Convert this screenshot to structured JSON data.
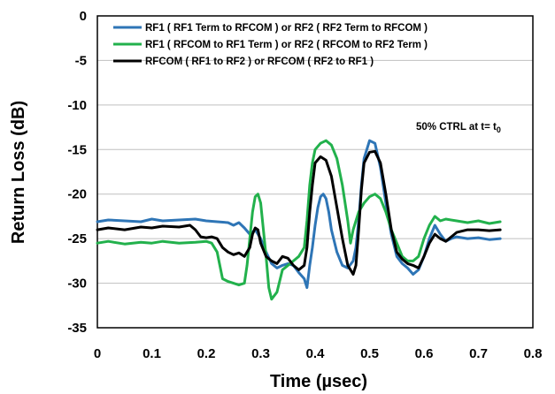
{
  "chart_data": {
    "type": "line",
    "xlabel": "Time (µsec)",
    "ylabel": "Return Loss (dB)",
    "xlim": [
      0,
      0.8
    ],
    "ylim": [
      -35,
      0
    ],
    "x_ticks": [
      "0",
      "0.1",
      "0.2",
      "0.3",
      "0.4",
      "0.5",
      "0.6",
      "0.7",
      "0.8"
    ],
    "y_ticks": [
      "0",
      "-5",
      "-10",
      "-15",
      "-20",
      "-25",
      "-30",
      "-35"
    ],
    "grid": "horizontal",
    "legend_position": "top",
    "annotation": {
      "text": "50% CTRL at t= t",
      "subscript": "0",
      "x": 0.63,
      "y": -11
    },
    "series": [
      {
        "name": "RF1 ( RF1 Term to RFCOM ) or RF2 ( RF2 Term to RFCOM )",
        "color": "#2e75b6",
        "points": [
          [
            0,
            -23.1
          ],
          [
            0.02,
            -22.9
          ],
          [
            0.05,
            -23.0
          ],
          [
            0.08,
            -23.1
          ],
          [
            0.1,
            -22.8
          ],
          [
            0.12,
            -23.0
          ],
          [
            0.15,
            -22.9
          ],
          [
            0.18,
            -22.8
          ],
          [
            0.2,
            -23.0
          ],
          [
            0.22,
            -23.1
          ],
          [
            0.24,
            -23.2
          ],
          [
            0.25,
            -23.5
          ],
          [
            0.26,
            -23.2
          ],
          [
            0.27,
            -23.8
          ],
          [
            0.28,
            -24.5
          ],
          [
            0.29,
            -24.0
          ],
          [
            0.3,
            -25.0
          ],
          [
            0.31,
            -26.5
          ],
          [
            0.32,
            -27.8
          ],
          [
            0.33,
            -28.3
          ],
          [
            0.34,
            -28.0
          ],
          [
            0.35,
            -27.8
          ],
          [
            0.36,
            -28.0
          ],
          [
            0.37,
            -28.8
          ],
          [
            0.38,
            -29.5
          ],
          [
            0.385,
            -30.5
          ],
          [
            0.39,
            -28.0
          ],
          [
            0.395,
            -26.0
          ],
          [
            0.4,
            -23.5
          ],
          [
            0.405,
            -21.5
          ],
          [
            0.41,
            -20.3
          ],
          [
            0.415,
            -20.0
          ],
          [
            0.42,
            -20.5
          ],
          [
            0.425,
            -22.0
          ],
          [
            0.43,
            -24.0
          ],
          [
            0.44,
            -26.5
          ],
          [
            0.45,
            -28.0
          ],
          [
            0.46,
            -28.3
          ],
          [
            0.47,
            -27.5
          ],
          [
            0.475,
            -26.0
          ],
          [
            0.48,
            -23.0
          ],
          [
            0.485,
            -19.0
          ],
          [
            0.49,
            -16.0
          ],
          [
            0.5,
            -14.0
          ],
          [
            0.51,
            -14.3
          ],
          [
            0.52,
            -17.0
          ],
          [
            0.53,
            -21.0
          ],
          [
            0.54,
            -24.5
          ],
          [
            0.55,
            -27.0
          ],
          [
            0.56,
            -27.8
          ],
          [
            0.57,
            -28.3
          ],
          [
            0.58,
            -29.0
          ],
          [
            0.59,
            -28.5
          ],
          [
            0.6,
            -27.0
          ],
          [
            0.61,
            -25.0
          ],
          [
            0.62,
            -23.5
          ],
          [
            0.63,
            -24.5
          ],
          [
            0.64,
            -25.3
          ],
          [
            0.65,
            -25.0
          ],
          [
            0.66,
            -24.8
          ],
          [
            0.68,
            -25.0
          ],
          [
            0.7,
            -24.9
          ],
          [
            0.72,
            -25.1
          ],
          [
            0.74,
            -25.0
          ]
        ]
      },
      {
        "name": "RF1 ( RFCOM to RF1 Term ) or RF2 ( RFCOM to RF2 Term )",
        "color": "#22b14c",
        "points": [
          [
            0,
            -25.5
          ],
          [
            0.02,
            -25.3
          ],
          [
            0.05,
            -25.6
          ],
          [
            0.08,
            -25.4
          ],
          [
            0.1,
            -25.5
          ],
          [
            0.12,
            -25.3
          ],
          [
            0.15,
            -25.5
          ],
          [
            0.18,
            -25.4
          ],
          [
            0.2,
            -25.3
          ],
          [
            0.21,
            -25.5
          ],
          [
            0.22,
            -26.5
          ],
          [
            0.23,
            -29.5
          ],
          [
            0.24,
            -29.8
          ],
          [
            0.25,
            -30.0
          ],
          [
            0.26,
            -30.2
          ],
          [
            0.27,
            -30.0
          ],
          [
            0.275,
            -28.0
          ],
          [
            0.28,
            -25.0
          ],
          [
            0.285,
            -22.0
          ],
          [
            0.29,
            -20.3
          ],
          [
            0.295,
            -20.0
          ],
          [
            0.3,
            -21.0
          ],
          [
            0.31,
            -27.0
          ],
          [
            0.315,
            -30.5
          ],
          [
            0.32,
            -31.8
          ],
          [
            0.33,
            -31.0
          ],
          [
            0.34,
            -28.5
          ],
          [
            0.35,
            -28.0
          ],
          [
            0.36,
            -27.5
          ],
          [
            0.37,
            -27.0
          ],
          [
            0.38,
            -26.0
          ],
          [
            0.385,
            -23.0
          ],
          [
            0.39,
            -19.0
          ],
          [
            0.395,
            -16.5
          ],
          [
            0.4,
            -15.0
          ],
          [
            0.41,
            -14.3
          ],
          [
            0.42,
            -14.0
          ],
          [
            0.43,
            -14.5
          ],
          [
            0.44,
            -16.0
          ],
          [
            0.45,
            -19.0
          ],
          [
            0.46,
            -23.0
          ],
          [
            0.465,
            -25.5
          ],
          [
            0.47,
            -24.0
          ],
          [
            0.48,
            -22.0
          ],
          [
            0.49,
            -21.0
          ],
          [
            0.5,
            -20.3
          ],
          [
            0.51,
            -20.0
          ],
          [
            0.52,
            -20.5
          ],
          [
            0.53,
            -22.0
          ],
          [
            0.54,
            -24.0
          ],
          [
            0.55,
            -25.5
          ],
          [
            0.56,
            -27.0
          ],
          [
            0.57,
            -27.5
          ],
          [
            0.58,
            -27.5
          ],
          [
            0.59,
            -27.0
          ],
          [
            0.6,
            -25.0
          ],
          [
            0.61,
            -23.5
          ],
          [
            0.62,
            -22.5
          ],
          [
            0.63,
            -23.0
          ],
          [
            0.64,
            -22.8
          ],
          [
            0.66,
            -23.0
          ],
          [
            0.68,
            -23.2
          ],
          [
            0.7,
            -23.0
          ],
          [
            0.72,
            -23.3
          ],
          [
            0.74,
            -23.1
          ]
        ]
      },
      {
        "name": "RFCOM ( RF1 to RF2 ) or RFCOM ( RF2 to RF1 )",
        "color": "#000000",
        "points": [
          [
            0,
            -24.0
          ],
          [
            0.02,
            -23.8
          ],
          [
            0.05,
            -24.0
          ],
          [
            0.08,
            -23.7
          ],
          [
            0.1,
            -23.8
          ],
          [
            0.12,
            -23.6
          ],
          [
            0.15,
            -23.7
          ],
          [
            0.17,
            -23.5
          ],
          [
            0.18,
            -24.0
          ],
          [
            0.19,
            -24.8
          ],
          [
            0.2,
            -24.9
          ],
          [
            0.21,
            -24.8
          ],
          [
            0.22,
            -25.0
          ],
          [
            0.23,
            -26.0
          ],
          [
            0.24,
            -26.5
          ],
          [
            0.25,
            -26.8
          ],
          [
            0.26,
            -26.6
          ],
          [
            0.27,
            -27.0
          ],
          [
            0.28,
            -26.0
          ],
          [
            0.285,
            -24.5
          ],
          [
            0.29,
            -23.8
          ],
          [
            0.295,
            -24.0
          ],
          [
            0.3,
            -25.5
          ],
          [
            0.31,
            -27.0
          ],
          [
            0.32,
            -27.5
          ],
          [
            0.33,
            -27.8
          ],
          [
            0.34,
            -27.0
          ],
          [
            0.35,
            -27.2
          ],
          [
            0.36,
            -28.0
          ],
          [
            0.37,
            -28.5
          ],
          [
            0.38,
            -28.0
          ],
          [
            0.385,
            -26.0
          ],
          [
            0.39,
            -22.0
          ],
          [
            0.395,
            -19.0
          ],
          [
            0.4,
            -16.5
          ],
          [
            0.41,
            -15.8
          ],
          [
            0.42,
            -16.2
          ],
          [
            0.43,
            -18.0
          ],
          [
            0.44,
            -21.5
          ],
          [
            0.45,
            -25.0
          ],
          [
            0.46,
            -28.0
          ],
          [
            0.47,
            -29.0
          ],
          [
            0.475,
            -28.0
          ],
          [
            0.48,
            -24.0
          ],
          [
            0.485,
            -19.5
          ],
          [
            0.49,
            -16.5
          ],
          [
            0.5,
            -15.3
          ],
          [
            0.51,
            -15.2
          ],
          [
            0.52,
            -16.5
          ],
          [
            0.53,
            -20.0
          ],
          [
            0.54,
            -24.0
          ],
          [
            0.55,
            -26.5
          ],
          [
            0.56,
            -27.3
          ],
          [
            0.57,
            -27.8
          ],
          [
            0.58,
            -28.0
          ],
          [
            0.59,
            -28.3
          ],
          [
            0.6,
            -27.0
          ],
          [
            0.61,
            -25.5
          ],
          [
            0.62,
            -24.5
          ],
          [
            0.63,
            -25.0
          ],
          [
            0.64,
            -25.3
          ],
          [
            0.65,
            -24.8
          ],
          [
            0.66,
            -24.3
          ],
          [
            0.68,
            -24.0
          ],
          [
            0.7,
            -24.0
          ],
          [
            0.72,
            -24.1
          ],
          [
            0.74,
            -24.0
          ]
        ]
      }
    ]
  }
}
